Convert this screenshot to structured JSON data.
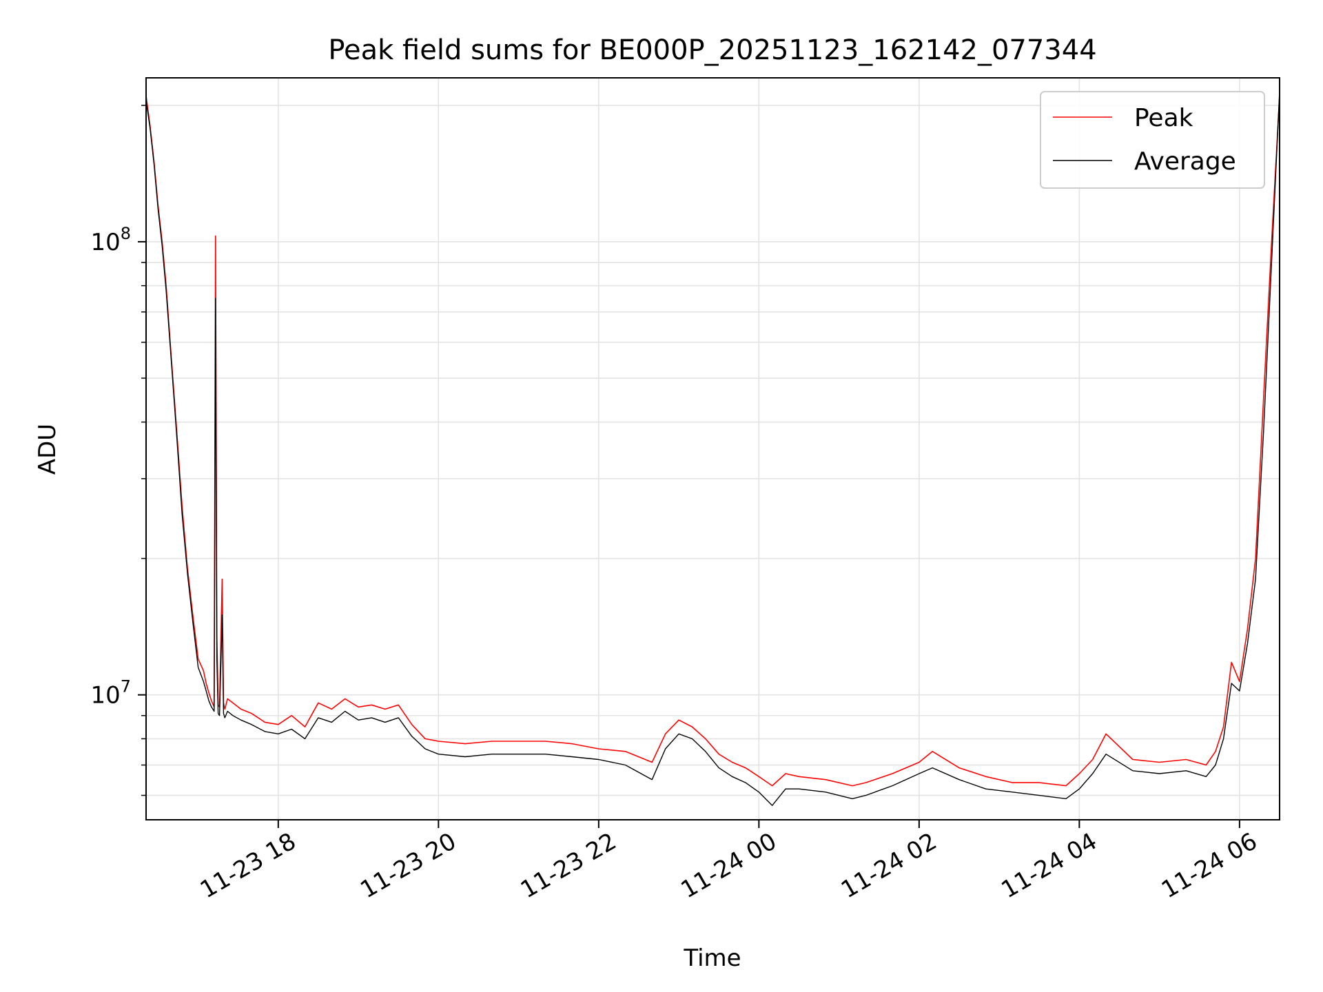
{
  "chart_data": {
    "type": "line",
    "title": "Peak field sums for BE000P_20251123_162142_077344",
    "xlabel": "Time",
    "ylabel": "ADU",
    "yscale": "log",
    "grid": true,
    "legend_position": "top-right",
    "x_ticks": [
      {
        "t": "2025-11-23 18:00",
        "label": "11-23 18"
      },
      {
        "t": "2025-11-23 20:00",
        "label": "11-23 20"
      },
      {
        "t": "2025-11-23 22:00",
        "label": "11-23 22"
      },
      {
        "t": "2025-11-24 00:00",
        "label": "11-24 00"
      },
      {
        "t": "2025-11-24 02:00",
        "label": "11-24 02"
      },
      {
        "t": "2025-11-24 04:00",
        "label": "11-24 04"
      },
      {
        "t": "2025-11-24 06:00",
        "label": "11-24 06"
      }
    ],
    "y_ticks": [
      {
        "value": 10000000,
        "base": "10",
        "exp": "7"
      },
      {
        "value": 100000000,
        "base": "10",
        "exp": "8"
      }
    ],
    "xlim": [
      "2025-11-23 16:21",
      "2025-11-24 06:30"
    ],
    "ylim": [
      5300000,
      230000000
    ],
    "series": [
      {
        "name": "Peak",
        "color": "#ff0000",
        "x": [
          "2025-11-23 16:21",
          "2025-11-23 16:24",
          "2025-11-23 16:27",
          "2025-11-23 16:30",
          "2025-11-23 16:33",
          "2025-11-23 16:36",
          "2025-11-23 16:40",
          "2025-11-23 16:44",
          "2025-11-23 16:48",
          "2025-11-23 16:52",
          "2025-11-23 16:56",
          "2025-11-23 17:00",
          "2025-11-23 17:04",
          "2025-11-23 17:06",
          "2025-11-23 17:08",
          "2025-11-23 17:10",
          "2025-11-23 17:12",
          "2025-11-23 17:13",
          "2025-11-23 17:14",
          "2025-11-23 17:15",
          "2025-11-23 17:16",
          "2025-11-23 17:18",
          "2025-11-23 17:19",
          "2025-11-23 17:20",
          "2025-11-23 17:22",
          "2025-11-23 17:26",
          "2025-11-23 17:32",
          "2025-11-23 17:40",
          "2025-11-23 17:50",
          "2025-11-23 18:00",
          "2025-11-23 18:10",
          "2025-11-23 18:20",
          "2025-11-23 18:30",
          "2025-11-23 18:40",
          "2025-11-23 18:50",
          "2025-11-23 19:00",
          "2025-11-23 19:10",
          "2025-11-23 19:20",
          "2025-11-23 19:30",
          "2025-11-23 19:40",
          "2025-11-23 19:50",
          "2025-11-23 20:00",
          "2025-11-23 20:20",
          "2025-11-23 20:40",
          "2025-11-23 21:00",
          "2025-11-23 21:20",
          "2025-11-23 21:40",
          "2025-11-23 22:00",
          "2025-11-23 22:20",
          "2025-11-23 22:40",
          "2025-11-23 22:50",
          "2025-11-23 23:00",
          "2025-11-23 23:10",
          "2025-11-23 23:20",
          "2025-11-23 23:30",
          "2025-11-23 23:40",
          "2025-11-23 23:50",
          "2025-11-24 00:00",
          "2025-11-24 00:10",
          "2025-11-24 00:20",
          "2025-11-24 00:30",
          "2025-11-24 00:50",
          "2025-11-24 01:10",
          "2025-11-24 01:20",
          "2025-11-24 01:40",
          "2025-11-24 02:00",
          "2025-11-24 02:10",
          "2025-11-24 02:30",
          "2025-11-24 02:50",
          "2025-11-24 03:10",
          "2025-11-24 03:30",
          "2025-11-24 03:50",
          "2025-11-24 04:00",
          "2025-11-24 04:10",
          "2025-11-24 04:20",
          "2025-11-24 04:40",
          "2025-11-24 05:00",
          "2025-11-24 05:20",
          "2025-11-24 05:35",
          "2025-11-24 05:42",
          "2025-11-24 05:48",
          "2025-11-24 05:54",
          "2025-11-24 06:00",
          "2025-11-24 06:06",
          "2025-11-24 06:12",
          "2025-11-24 06:18",
          "2025-11-24 06:24",
          "2025-11-24 06:30"
        ],
        "y": [
          210000000,
          180000000,
          150000000,
          120000000,
          100000000,
          80000000,
          55000000,
          38000000,
          26000000,
          19000000,
          15000000,
          12000000,
          11300000,
          10600000,
          10100000,
          9700000,
          9400000,
          103000000,
          13500000,
          9500000,
          9400000,
          18000000,
          9600000,
          9300000,
          9800000,
          9600000,
          9300000,
          9100000,
          8700000,
          8600000,
          9000000,
          8500000,
          9600000,
          9300000,
          9800000,
          9400000,
          9500000,
          9300000,
          9500000,
          8600000,
          8000000,
          7900000,
          7800000,
          7900000,
          7900000,
          7900000,
          7800000,
          7600000,
          7500000,
          7100000,
          8200000,
          8800000,
          8500000,
          8000000,
          7400000,
          7100000,
          6900000,
          6600000,
          6300000,
          6700000,
          6600000,
          6500000,
          6300000,
          6400000,
          6700000,
          7100000,
          7500000,
          6900000,
          6600000,
          6400000,
          6400000,
          6300000,
          6700000,
          7200000,
          8200000,
          7200000,
          7100000,
          7200000,
          7000000,
          7500000,
          8500000,
          11800000,
          10700000,
          14000000,
          20000000,
          45000000,
          100000000,
          210000000
        ]
      },
      {
        "name": "Average",
        "color": "#000000",
        "x": [
          "2025-11-23 16:21",
          "2025-11-23 16:24",
          "2025-11-23 16:27",
          "2025-11-23 16:30",
          "2025-11-23 16:33",
          "2025-11-23 16:36",
          "2025-11-23 16:40",
          "2025-11-23 16:44",
          "2025-11-23 16:48",
          "2025-11-23 16:52",
          "2025-11-23 16:56",
          "2025-11-23 17:00",
          "2025-11-23 17:04",
          "2025-11-23 17:06",
          "2025-11-23 17:08",
          "2025-11-23 17:10",
          "2025-11-23 17:12",
          "2025-11-23 17:13",
          "2025-11-23 17:14",
          "2025-11-23 17:15",
          "2025-11-23 17:16",
          "2025-11-23 17:18",
          "2025-11-23 17:19",
          "2025-11-23 17:20",
          "2025-11-23 17:22",
          "2025-11-23 17:26",
          "2025-11-23 17:32",
          "2025-11-23 17:40",
          "2025-11-23 17:50",
          "2025-11-23 18:00",
          "2025-11-23 18:10",
          "2025-11-23 18:20",
          "2025-11-23 18:30",
          "2025-11-23 18:40",
          "2025-11-23 18:50",
          "2025-11-23 19:00",
          "2025-11-23 19:10",
          "2025-11-23 19:20",
          "2025-11-23 19:30",
          "2025-11-23 19:40",
          "2025-11-23 19:50",
          "2025-11-23 20:00",
          "2025-11-23 20:20",
          "2025-11-23 20:40",
          "2025-11-23 21:00",
          "2025-11-23 21:20",
          "2025-11-23 21:40",
          "2025-11-23 22:00",
          "2025-11-23 22:20",
          "2025-11-23 22:40",
          "2025-11-23 22:50",
          "2025-11-23 23:00",
          "2025-11-23 23:10",
          "2025-11-23 23:20",
          "2025-11-23 23:30",
          "2025-11-23 23:40",
          "2025-11-23 23:50",
          "2025-11-24 00:00",
          "2025-11-24 00:10",
          "2025-11-24 00:20",
          "2025-11-24 00:30",
          "2025-11-24 00:50",
          "2025-11-24 01:10",
          "2025-11-24 01:20",
          "2025-11-24 01:40",
          "2025-11-24 02:00",
          "2025-11-24 02:10",
          "2025-11-24 02:30",
          "2025-11-24 02:50",
          "2025-11-24 03:10",
          "2025-11-24 03:30",
          "2025-11-24 03:50",
          "2025-11-24 04:00",
          "2025-11-24 04:10",
          "2025-11-24 04:20",
          "2025-11-24 04:40",
          "2025-11-24 05:00",
          "2025-11-24 05:20",
          "2025-11-24 05:35",
          "2025-11-24 05:42",
          "2025-11-24 05:48",
          "2025-11-24 05:54",
          "2025-11-24 06:00",
          "2025-11-24 06:06",
          "2025-11-24 06:12",
          "2025-11-24 06:18",
          "2025-11-24 06:24",
          "2025-11-24 06:30"
        ],
        "y": [
          205000000,
          178000000,
          148000000,
          118000000,
          98000000,
          78000000,
          54000000,
          37000000,
          25000000,
          18500000,
          14500000,
          11500000,
          10700000,
          10200000,
          9700000,
          9400000,
          9200000,
          75000000,
          12000000,
          9100000,
          9000000,
          15000000,
          9100000,
          8900000,
          9200000,
          9000000,
          8800000,
          8600000,
          8300000,
          8200000,
          8400000,
          8000000,
          8900000,
          8700000,
          9200000,
          8800000,
          8900000,
          8700000,
          8900000,
          8100000,
          7600000,
          7400000,
          7300000,
          7400000,
          7400000,
          7400000,
          7300000,
          7200000,
          7000000,
          6500000,
          7600000,
          8200000,
          8000000,
          7500000,
          6900000,
          6600000,
          6400000,
          6100000,
          5700000,
          6200000,
          6200000,
          6100000,
          5900000,
          6000000,
          6300000,
          6700000,
          6900000,
          6500000,
          6200000,
          6100000,
          6000000,
          5900000,
          6200000,
          6700000,
          7400000,
          6800000,
          6700000,
          6800000,
          6600000,
          7000000,
          8000000,
          10600000,
          10200000,
          13000000,
          18000000,
          38000000,
          90000000,
          215000000
        ]
      }
    ]
  }
}
